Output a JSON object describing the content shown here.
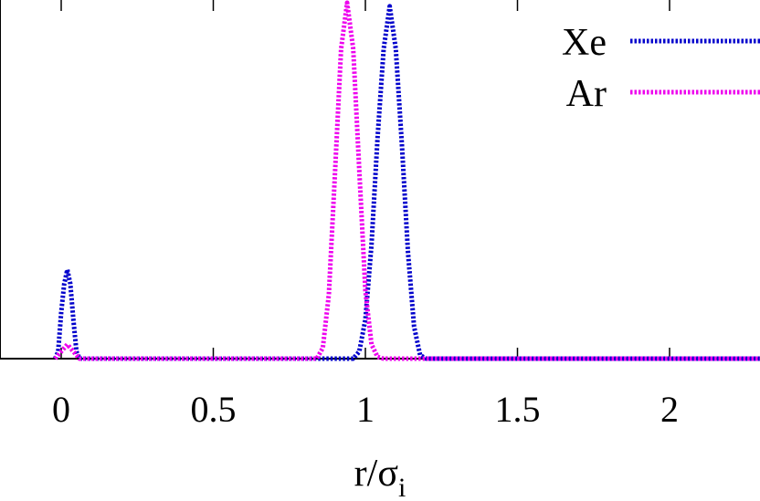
{
  "chart_data": {
    "type": "line",
    "title": "",
    "xlabel": "r/σ",
    "xlabel_sub": "i",
    "ylabel": "",
    "xlim": [
      -0.2,
      2.3
    ],
    "ylim": [
      0,
      1
    ],
    "xticks": [
      {
        "value": 0,
        "label": "0"
      },
      {
        "value": 0.5,
        "label": "0.5"
      },
      {
        "value": 1,
        "label": "1"
      },
      {
        "value": 1.5,
        "label": "1.5"
      },
      {
        "value": 2,
        "label": "2"
      }
    ],
    "grid": false,
    "legend_position": "top-right",
    "series": [
      {
        "name": "Xe",
        "color": "#0000cc",
        "dash": "dotted",
        "x": [
          -0.02,
          -0.01,
          0.0,
          0.01,
          0.02,
          0.03,
          0.04,
          0.05,
          0.06,
          0.4,
          0.96,
          0.98,
          1.0,
          1.02,
          1.04,
          1.06,
          1.08,
          1.1,
          1.12,
          1.14,
          1.16,
          1.18,
          1.2,
          2.3
        ],
        "y": [
          0.0,
          0.02,
          0.13,
          0.21,
          0.25,
          0.21,
          0.11,
          0.02,
          0.0,
          0.0,
          0.0,
          0.02,
          0.11,
          0.32,
          0.62,
          0.87,
          0.99,
          0.87,
          0.6,
          0.3,
          0.09,
          0.01,
          0.0,
          0.0
        ]
      },
      {
        "name": "Ar",
        "color": "#ee00ee",
        "dash": "dotted",
        "x": [
          -0.02,
          0.0,
          0.02,
          0.04,
          0.06,
          0.4,
          0.84,
          0.86,
          0.88,
          0.9,
          0.92,
          0.94,
          0.96,
          0.98,
          1.0,
          1.02,
          1.04,
          1.06,
          2.3
        ],
        "y": [
          0.0,
          0.02,
          0.04,
          0.02,
          0.0,
          0.0,
          0.0,
          0.03,
          0.18,
          0.52,
          0.87,
          1.0,
          0.87,
          0.53,
          0.19,
          0.04,
          0.005,
          0.0,
          0.0
        ]
      }
    ]
  }
}
